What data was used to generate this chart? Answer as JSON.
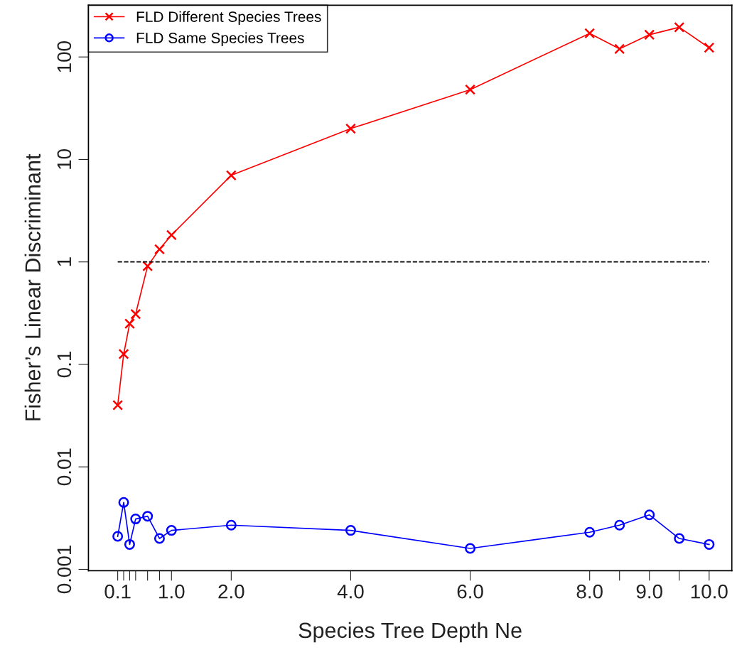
{
  "chart_data": {
    "type": "line",
    "xlabel": "Species Tree Depth Ne",
    "ylabel": "Fisher’s Linear Discriminant",
    "x": [
      0.1,
      0.2,
      0.3,
      0.4,
      0.6,
      0.8,
      1.0,
      2.0,
      4.0,
      6.0,
      8.0,
      8.5,
      9.0,
      9.5,
      10.0
    ],
    "series": [
      {
        "name": "FLD Different Species Trees",
        "color": "#ff0000",
        "marker": "cross",
        "values": [
          0.04,
          0.126,
          0.25,
          0.31,
          0.91,
          1.33,
          1.83,
          7,
          20,
          48,
          170,
          120,
          165,
          195,
          123
        ]
      },
      {
        "name": "FLD Same Species Trees",
        "color": "#0000ff",
        "marker": "circle",
        "values": [
          0.0021,
          0.0045,
          0.00175,
          0.0031,
          0.0033,
          0.002,
          0.0024,
          0.0027,
          0.0024,
          0.0016,
          0.0023,
          0.0027,
          0.0034,
          0.002,
          0.00175
        ]
      }
    ],
    "log": "y",
    "xlim": [
      -0.39,
      10.38
    ],
    "ylim": [
      0.00097,
      320
    ],
    "xticks": [
      {
        "value": 0.1,
        "label": "0.1"
      },
      {
        "value": 0.2,
        "label": null
      },
      {
        "value": 0.3,
        "label": null
      },
      {
        "value": 0.4,
        "label": null
      },
      {
        "value": 0.6,
        "label": null
      },
      {
        "value": 0.8,
        "label": null
      },
      {
        "value": 1.0,
        "label": "1.0"
      },
      {
        "value": 2.0,
        "label": "2.0"
      },
      {
        "value": 4.0,
        "label": "4.0"
      },
      {
        "value": 6.0,
        "label": "6.0"
      },
      {
        "value": 8.0,
        "label": "8.0"
      },
      {
        "value": 8.5,
        "label": null
      },
      {
        "value": 9.0,
        "label": "9.0"
      },
      {
        "value": 9.5,
        "label": null
      },
      {
        "value": 10.0,
        "label": "10.0"
      }
    ],
    "yticks": [
      0.001,
      0.01,
      0.1,
      1,
      10,
      100
    ],
    "ref_lines": [
      {
        "axis": "y",
        "value": 1,
        "label": null,
        "color": "#000000",
        "line_style": "dashed"
      }
    ],
    "legend": "top left",
    "grid": false,
    "line_style": "solid"
  }
}
